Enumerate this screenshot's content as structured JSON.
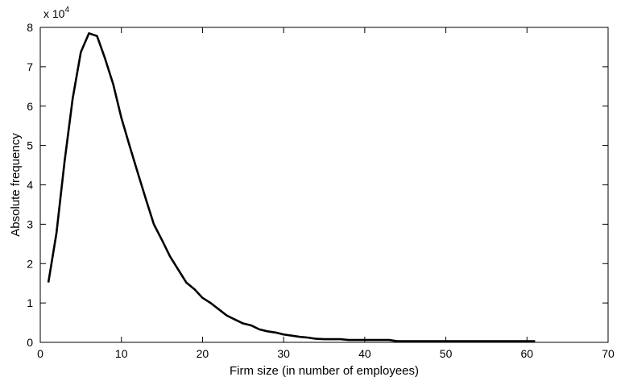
{
  "chart_data": {
    "type": "line",
    "title": "",
    "xlabel": "Firm size (in number of employees)",
    "ylabel": "Absolute frequency",
    "y_multiplier_base": "x 10",
    "y_multiplier_exp": "4",
    "xlim": [
      0,
      70
    ],
    "ylim": [
      0,
      8
    ],
    "x_ticks": [
      0,
      10,
      20,
      30,
      40,
      50,
      60,
      70
    ],
    "y_ticks": [
      0,
      1,
      2,
      3,
      4,
      5,
      6,
      7,
      8
    ],
    "grid": false,
    "line_color": "#000000",
    "series": [
      {
        "x": [
          1,
          2,
          3,
          4,
          5,
          6,
          7,
          8,
          9,
          10,
          11,
          12,
          13,
          14,
          15,
          16,
          17,
          18,
          19,
          20,
          21,
          22,
          23,
          24,
          25,
          26,
          27,
          28,
          29,
          30,
          31,
          32,
          33,
          34,
          35,
          36,
          37,
          38,
          39,
          40,
          41,
          42,
          43,
          44,
          45,
          46,
          47,
          48,
          49,
          50,
          51,
          52,
          53,
          54,
          55,
          56,
          57,
          58,
          59,
          60,
          61
        ],
        "values": [
          1.52,
          2.78,
          4.6,
          6.2,
          7.37,
          7.85,
          7.78,
          7.2,
          6.55,
          5.7,
          5.0,
          4.32,
          3.65,
          3.0,
          2.6,
          2.18,
          1.85,
          1.52,
          1.35,
          1.13,
          1.0,
          0.84,
          0.68,
          0.58,
          0.48,
          0.43,
          0.33,
          0.28,
          0.25,
          0.2,
          0.17,
          0.14,
          0.12,
          0.09,
          0.08,
          0.08,
          0.08,
          0.06,
          0.06,
          0.06,
          0.06,
          0.06,
          0.06,
          0.03,
          0.03,
          0.03,
          0.03,
          0.03,
          0.03,
          0.03,
          0.03,
          0.03,
          0.03,
          0.03,
          0.03,
          0.03,
          0.03,
          0.03,
          0.03,
          0.03,
          0.03
        ]
      }
    ]
  }
}
